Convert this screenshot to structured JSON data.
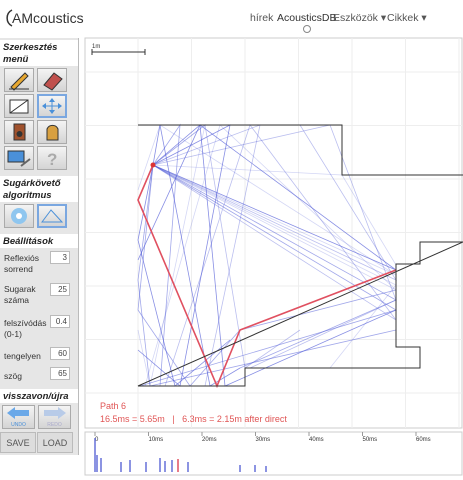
{
  "header": {
    "logo": "AMcoustics",
    "nav": [
      "hírek",
      "AcousticsDB",
      "Eszközök",
      "Cikkek"
    ]
  },
  "sidebar": {
    "edit_title": "Szerkesztés menü",
    "tracer_title": "Sugárkövető algoritmus",
    "settings_title": "Beállítások",
    "settings": [
      {
        "label": "Reflexiós sorrend",
        "value": "3"
      },
      {
        "label": "Sugarak száma",
        "value": "25"
      },
      {
        "label": "felszívódás (0-1)",
        "value": "0.4"
      },
      {
        "label": "tengelyen",
        "value": "60"
      },
      {
        "label": "szög",
        "value": "65"
      }
    ],
    "undo_title": "visszavon/újra",
    "undo": "UNDO",
    "redo": "REDO",
    "save": "SAVE",
    "load": "LOAD"
  },
  "canvas": {
    "scale_label": "1m",
    "path_title": "Path 6",
    "path_info": "16.5ms = 5.65m   |   6.3ms = 2.15m after direct"
  },
  "timeline": {
    "labels": [
      "0",
      "10ms",
      "20ms",
      "30ms",
      "40ms",
      "50ms",
      "60ms"
    ]
  }
}
